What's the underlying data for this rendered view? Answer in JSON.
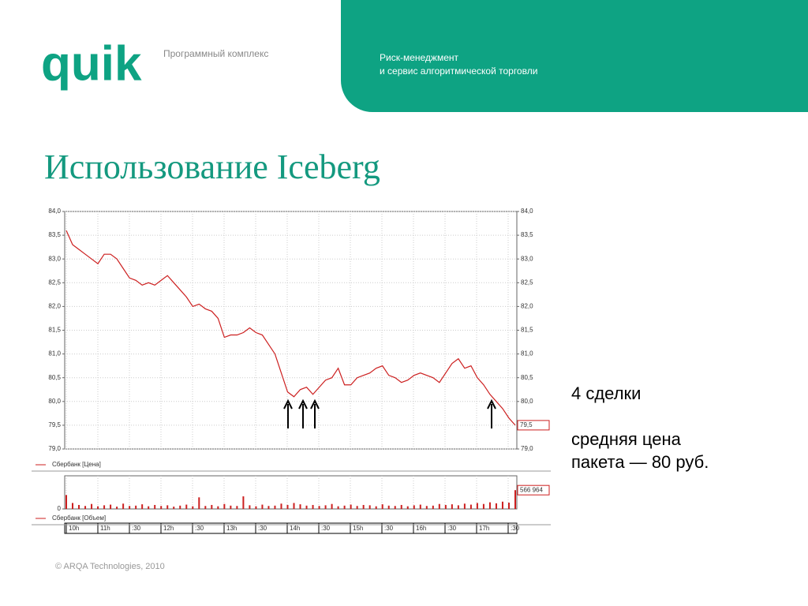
{
  "header": {
    "logo": "quik",
    "product": "Программный комплекс",
    "tagline_1": "Риск-менеджмент",
    "tagline_2": "и сервис алгоритмической торговли"
  },
  "title": "Использование Iceberg",
  "notes": {
    "deals": "4 сделки",
    "avg_1": "средняя цена",
    "avg_2": "пакета — 80 руб."
  },
  "footer": "© ARQA Technologies, 2010",
  "time_labels": [
    "10h",
    "11h",
    ":30",
    "12h",
    ":30",
    "13h",
    ":30",
    "14h",
    ":30",
    "15h",
    ":30",
    "16h",
    ":30",
    "17h",
    ":30"
  ],
  "chart_data": [
    {
      "type": "line",
      "legend": "Сбербанк [Цена]",
      "color": "#cc1f1f",
      "ylim": [
        79,
        84
      ],
      "yticks": [
        {
          "value": 79,
          "label": "79,0"
        },
        {
          "value": 79.5,
          "label": "79,5"
        },
        {
          "value": 80,
          "label": "80,0"
        },
        {
          "value": 80.5,
          "label": "80,5"
        },
        {
          "value": 81,
          "label": "81,0"
        },
        {
          "value": 81.5,
          "label": "81,5"
        },
        {
          "value": 82,
          "label": "82,0"
        },
        {
          "value": 82.5,
          "label": "82,5"
        },
        {
          "value": 83,
          "label": "83,0"
        },
        {
          "value": 83.5,
          "label": "83,5"
        },
        {
          "value": 84,
          "label": "84,0"
        }
      ],
      "grid": true,
      "last_value_label": "79,5",
      "values": [
        83.6,
        83.3,
        83.2,
        83.1,
        83.0,
        82.9,
        83.1,
        83.1,
        83.0,
        82.8,
        82.6,
        82.55,
        82.45,
        82.5,
        82.45,
        82.55,
        82.65,
        82.5,
        82.35,
        82.2,
        82.0,
        82.05,
        81.95,
        81.9,
        81.75,
        81.35,
        81.4,
        81.4,
        81.45,
        81.55,
        81.45,
        81.4,
        81.2,
        81.0,
        80.6,
        80.2,
        80.1,
        80.25,
        80.3,
        80.15,
        80.3,
        80.45,
        80.5,
        80.7,
        80.35,
        80.35,
        80.5,
        80.55,
        80.6,
        80.7,
        80.75,
        80.55,
        80.5,
        80.4,
        80.45,
        80.55,
        80.6,
        80.55,
        80.5,
        80.4,
        80.6,
        80.8,
        80.9,
        80.7,
        80.75,
        80.5,
        80.35,
        80.15,
        80.0,
        79.85,
        79.65,
        79.5
      ]
    },
    {
      "type": "bar",
      "legend": "Сбербанк [Объем]",
      "color": "#cc1f1f",
      "ylim": [
        0,
        1000000
      ],
      "yticks": [
        0
      ],
      "last_value_label": "566 964",
      "values": [
        420000,
        180000,
        120000,
        90000,
        150000,
        80000,
        110000,
        130000,
        70000,
        160000,
        90000,
        100000,
        140000,
        80000,
        120000,
        90000,
        110000,
        70000,
        100000,
        130000,
        80000,
        350000,
        90000,
        120000,
        80000,
        150000,
        100000,
        90000,
        380000,
        110000,
        80000,
        130000,
        90000,
        100000,
        160000,
        120000,
        180000,
        140000,
        100000,
        120000,
        90000,
        110000,
        150000,
        80000,
        100000,
        130000,
        90000,
        120000,
        110000,
        80000,
        140000,
        100000,
        90000,
        120000,
        80000,
        110000,
        130000,
        90000,
        100000,
        150000,
        120000,
        140000,
        110000,
        160000,
        130000,
        180000,
        150000,
        200000,
        170000,
        220000,
        190000,
        566964
      ]
    }
  ]
}
